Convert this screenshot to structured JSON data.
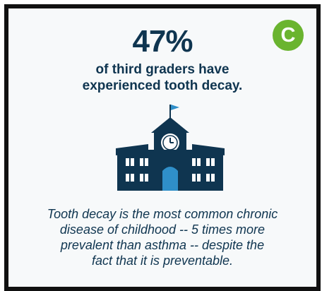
{
  "statistic": "47%",
  "headline_line1": "of third graders have",
  "headline_line2": "experienced tooth decay.",
  "grade_badge": "C",
  "icon": "school-building-icon",
  "caption_lines": [
    "Tooth decay is the most common chronic",
    "disease of childhood -- 5 times more",
    "prevalent than asthma -- despite the",
    "fact that it is preventable."
  ],
  "colors": {
    "navy": "#0f3550",
    "accent_blue": "#2f8fc9",
    "badge_green": "#6ab42f",
    "border": "#111111"
  }
}
